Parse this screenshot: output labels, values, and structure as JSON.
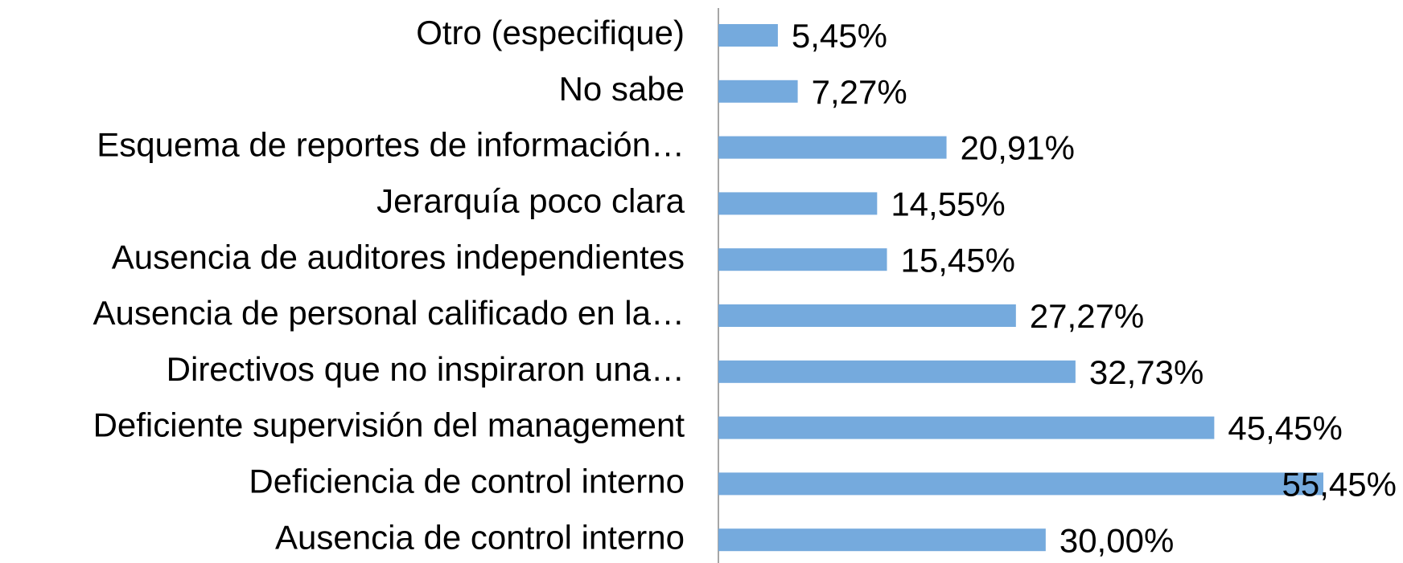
{
  "chart_data": {
    "type": "bar",
    "orientation": "horizontal",
    "categories": [
      "Otro (especifique)",
      "No sabe",
      "Esquema de reportes de información…",
      "Jerarquía poco clara",
      "Ausencia de auditores independientes",
      "Ausencia de personal calificado en la…",
      "Directivos que no inspiraron una…",
      "Deficiente supervisión del management",
      "Deficiencia de control interno",
      "Ausencia de control interno"
    ],
    "values": [
      5.45,
      7.27,
      20.91,
      14.55,
      15.45,
      27.27,
      32.73,
      45.45,
      55.45,
      30.0
    ],
    "value_labels": [
      "5,45%",
      "7,27%",
      "20,91%",
      "14,55%",
      "15,45%",
      "27,27%",
      "32,73%",
      "45,45%",
      "55,45%",
      "30,00%"
    ],
    "color": "#75aadd"
  }
}
